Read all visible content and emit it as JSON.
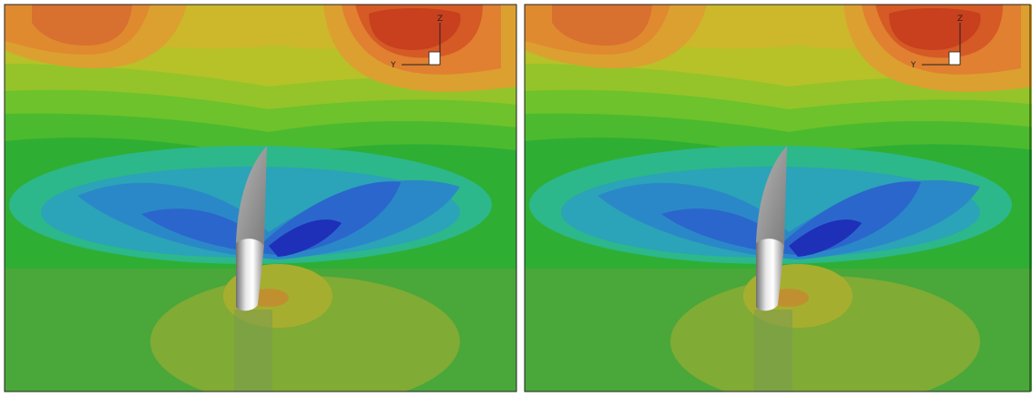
{
  "panels": [
    {
      "z_label": "Z",
      "y_label": "Y"
    },
    {
      "z_label": "Z",
      "y_label": "Y"
    }
  ]
}
